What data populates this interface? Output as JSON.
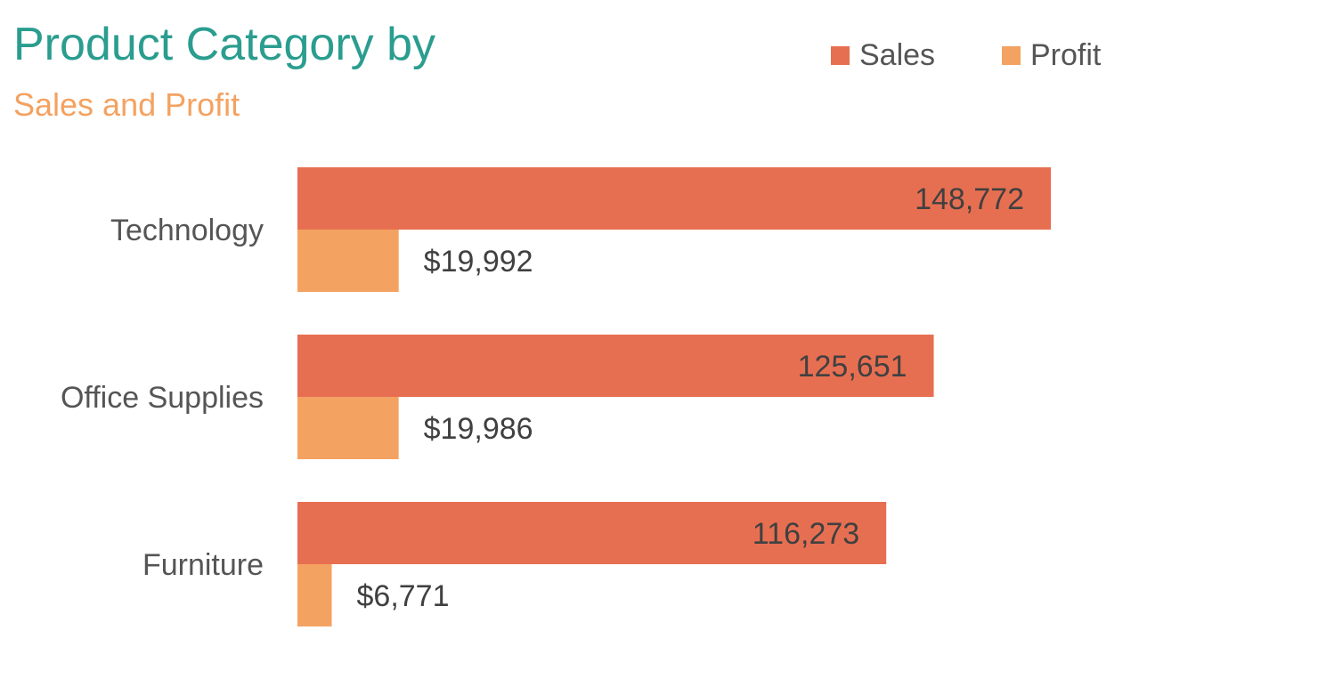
{
  "header": {
    "title": "Product Category by",
    "subtitle": "Sales and Profit"
  },
  "colors": {
    "title": "#2A9D8F",
    "subtitle": "#F4A261",
    "sales": "#E76F51",
    "profit": "#F4A261",
    "category_text": "#555555",
    "value_text": "#404040"
  },
  "legend": {
    "items": [
      {
        "label": "Sales"
      },
      {
        "label": "Profit"
      }
    ]
  },
  "chart_data": {
    "type": "bar",
    "orientation": "horizontal",
    "title": "Product Category by",
    "subtitle": "Sales and Profit",
    "categories": [
      "Technology",
      "Office Supplies",
      "Furniture"
    ],
    "series": [
      {
        "name": "Sales",
        "values": [
          148772,
          125651,
          116273
        ],
        "labels": [
          "148,772",
          "125,651",
          "116,273"
        ]
      },
      {
        "name": "Profit",
        "values": [
          19992,
          19986,
          6771
        ],
        "labels": [
          "$19,992",
          "$19,986",
          "$6,771"
        ]
      }
    ],
    "xlim": [
      0,
      160000
    ],
    "grid": false,
    "legend_position": "top-right",
    "axes_visible": false
  }
}
